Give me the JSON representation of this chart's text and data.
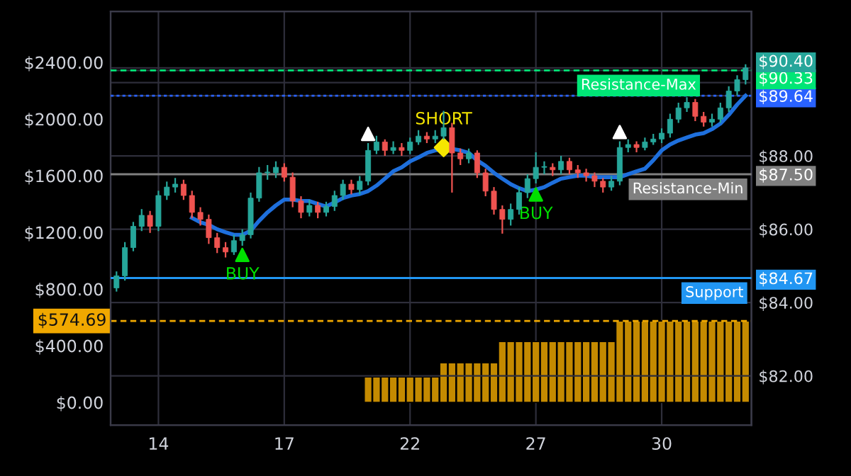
{
  "chart_data": {
    "type": "candlestick",
    "categories": [
      null,
      null,
      null,
      null,
      null,
      "14",
      null,
      null,
      null,
      null,
      null,
      null,
      null,
      null,
      null,
      null,
      null,
      null,
      null,
      null,
      "17",
      null,
      null,
      null,
      null,
      null,
      null,
      null,
      null,
      null,
      null,
      null,
      null,
      null,
      null,
      "22",
      null,
      null,
      null,
      null,
      null,
      null,
      null,
      null,
      null,
      null,
      null,
      null,
      null,
      null,
      "27",
      null,
      null,
      null,
      null,
      null,
      null,
      null,
      null,
      null,
      null,
      null,
      null,
      null,
      null,
      "30",
      null,
      null,
      null,
      null,
      null,
      null,
      null,
      null,
      null,
      null
    ],
    "series": [
      {
        "type": "bar",
        "axis": "y",
        "color": "#c48a00",
        "values": [
          null,
          null,
          null,
          null,
          null,
          null,
          null,
          null,
          null,
          null,
          null,
          null,
          null,
          null,
          null,
          null,
          null,
          null,
          null,
          null,
          null,
          null,
          null,
          null,
          null,
          null,
          null,
          null,
          null,
          null,
          180,
          180,
          180,
          180,
          180,
          180,
          180,
          180,
          180,
          280,
          280,
          280,
          280,
          280,
          280,
          280,
          430,
          430,
          430,
          430,
          430,
          430,
          430,
          430,
          430,
          430,
          430,
          430,
          430,
          430,
          574.69,
          574.69,
          574.69,
          574.69,
          574.69,
          574.69,
          574.69,
          574.69,
          574.69,
          574.69,
          574.69,
          574.69,
          574.69,
          574.69,
          574.69,
          574.69
        ]
      },
      {
        "axis": "y2",
        "ohlc": [
          [
            84.4,
            84.85,
            84.3,
            84.73
          ],
          [
            84.73,
            85.65,
            84.6,
            85.5
          ],
          [
            85.5,
            86.2,
            85.4,
            86.08
          ],
          [
            86.08,
            86.55,
            85.95,
            86.38
          ],
          [
            86.38,
            86.5,
            85.9,
            86.08
          ],
          [
            86.08,
            87.05,
            85.95,
            86.92
          ],
          [
            86.92,
            87.3,
            86.8,
            87.15
          ],
          [
            87.15,
            87.4,
            87.0,
            87.23
          ],
          [
            87.23,
            87.35,
            86.8,
            86.92
          ],
          [
            86.92,
            87.05,
            86.3,
            86.46
          ],
          [
            86.46,
            86.6,
            86.1,
            86.27
          ],
          [
            86.27,
            86.4,
            85.6,
            85.77
          ],
          [
            85.77,
            85.9,
            85.35,
            85.5
          ],
          [
            85.5,
            85.65,
            85.23,
            85.38
          ],
          [
            85.38,
            85.85,
            85.3,
            85.69
          ],
          [
            85.69,
            86.0,
            85.55,
            85.85
          ],
          [
            85.85,
            87.0,
            85.75,
            86.85
          ],
          [
            86.85,
            87.7,
            86.75,
            87.54
          ],
          [
            87.54,
            87.75,
            87.35,
            87.54
          ],
          [
            87.54,
            87.85,
            87.4,
            87.69
          ],
          [
            87.69,
            87.8,
            87.3,
            87.42
          ],
          [
            87.42,
            87.55,
            86.6,
            86.77
          ],
          [
            86.77,
            86.9,
            86.3,
            86.46
          ],
          [
            86.46,
            86.8,
            86.35,
            86.65
          ],
          [
            86.65,
            86.75,
            86.3,
            86.46
          ],
          [
            86.46,
            86.75,
            86.35,
            86.62
          ],
          [
            86.62,
            87.05,
            86.5,
            86.92
          ],
          [
            86.92,
            87.35,
            86.8,
            87.23
          ],
          [
            87.23,
            87.35,
            86.95,
            87.08
          ],
          [
            87.08,
            87.45,
            86.95,
            87.31
          ],
          [
            87.31,
            88.35,
            87.2,
            88.15
          ],
          [
            88.15,
            88.55,
            88.05,
            88.38
          ],
          [
            88.38,
            88.45,
            88.0,
            88.15
          ],
          [
            88.15,
            88.4,
            88.05,
            88.23
          ],
          [
            88.23,
            88.35,
            88.0,
            88.15
          ],
          [
            88.15,
            88.5,
            88.05,
            88.38
          ],
          [
            88.38,
            88.7,
            88.3,
            88.54
          ],
          [
            88.54,
            88.65,
            88.35,
            88.46
          ],
          [
            88.46,
            88.7,
            88.35,
            88.54
          ],
          [
            88.54,
            89.23,
            88.45,
            88.77
          ],
          [
            88.77,
            88.9,
            87.0,
            88.08
          ],
          [
            88.08,
            88.2,
            87.75,
            87.92
          ],
          [
            87.92,
            88.2,
            87.8,
            88.08
          ],
          [
            88.08,
            88.15,
            87.4,
            87.54
          ],
          [
            87.54,
            87.65,
            86.9,
            87.04
          ],
          [
            87.04,
            87.15,
            86.4,
            86.54
          ],
          [
            86.54,
            86.65,
            85.88,
            86.27
          ],
          [
            86.27,
            86.7,
            86.1,
            86.54
          ],
          [
            86.54,
            87.15,
            86.4,
            87.0
          ],
          [
            87.0,
            87.5,
            86.85,
            87.38
          ],
          [
            87.38,
            88.1,
            87.25,
            87.69
          ],
          [
            87.69,
            87.85,
            87.5,
            87.69
          ],
          [
            87.69,
            87.8,
            87.45,
            87.62
          ],
          [
            87.62,
            88.0,
            87.5,
            87.85
          ],
          [
            87.85,
            87.95,
            87.5,
            87.62
          ],
          [
            87.62,
            87.75,
            87.4,
            87.54
          ],
          [
            87.54,
            87.65,
            87.3,
            87.46
          ],
          [
            87.46,
            87.55,
            87.15,
            87.31
          ],
          [
            87.31,
            87.4,
            87.0,
            87.15
          ],
          [
            87.15,
            87.45,
            87.05,
            87.31
          ],
          [
            87.31,
            88.4,
            87.2,
            88.23
          ],
          [
            88.23,
            88.45,
            88.1,
            88.31
          ],
          [
            88.31,
            88.4,
            88.1,
            88.23
          ],
          [
            88.23,
            88.5,
            88.15,
            88.38
          ],
          [
            88.38,
            88.6,
            88.3,
            88.46
          ],
          [
            88.46,
            88.75,
            88.35,
            88.62
          ],
          [
            88.62,
            89.15,
            88.5,
            89.0
          ],
          [
            89.0,
            89.45,
            88.9,
            89.31
          ],
          [
            89.31,
            89.6,
            89.2,
            89.46
          ],
          [
            89.46,
            89.55,
            88.95,
            89.08
          ],
          [
            89.08,
            89.2,
            88.8,
            88.92
          ],
          [
            88.92,
            89.15,
            88.8,
            89.0
          ],
          [
            89.0,
            89.45,
            88.9,
            89.31
          ],
          [
            89.31,
            89.9,
            89.2,
            89.77
          ],
          [
            89.77,
            90.2,
            89.65,
            90.08
          ],
          [
            90.08,
            90.5,
            89.95,
            90.4
          ]
        ]
      },
      {
        "type": "line",
        "axis": "y2",
        "color": "#1e6fdc",
        "values": [
          null,
          null,
          null,
          null,
          null,
          null,
          null,
          null,
          null,
          86.31,
          86.19,
          86.12,
          86.0,
          85.92,
          85.85,
          85.85,
          85.96,
          86.23,
          86.46,
          86.65,
          86.81,
          86.81,
          86.77,
          86.77,
          86.69,
          86.62,
          86.73,
          86.85,
          86.92,
          86.96,
          87.04,
          87.19,
          87.38,
          87.58,
          87.69,
          87.85,
          87.96,
          88.08,
          88.15,
          88.19,
          88.19,
          88.15,
          88.08,
          87.88,
          87.73,
          87.54,
          87.38,
          87.23,
          87.12,
          87.04,
          87.08,
          87.15,
          87.27,
          87.38,
          87.42,
          87.46,
          87.46,
          87.42,
          87.42,
          87.42,
          87.42,
          87.5,
          87.58,
          87.65,
          87.88,
          88.15,
          88.31,
          88.42,
          88.5,
          88.58,
          88.62,
          88.73,
          88.88,
          89.12,
          89.4,
          89.64
        ]
      },
      {
        "type": "scatter",
        "axis": "y2",
        "name": "BUY",
        "color": "#00e000",
        "marker": "triangle",
        "values": [
          null,
          null,
          null,
          null,
          null,
          null,
          null,
          null,
          null,
          null,
          null,
          null,
          null,
          null,
          null,
          85.3,
          null,
          null,
          null,
          null,
          null,
          null,
          null,
          null,
          null,
          null,
          null,
          null,
          null,
          null,
          null,
          null,
          null,
          null,
          null,
          null,
          null,
          null,
          null,
          null,
          null,
          null,
          null,
          null,
          null,
          null,
          null,
          null,
          null,
          null,
          86.95,
          null,
          null,
          null,
          null,
          null,
          null,
          null,
          null,
          null,
          null,
          null,
          null,
          null,
          null,
          null,
          null,
          null,
          null,
          null,
          null,
          null,
          null,
          null,
          null,
          null
        ]
      },
      {
        "type": "scatter",
        "axis": "y2",
        "name": "SHORT",
        "color": "#f5e600",
        "marker": "diamond",
        "values": [
          null,
          null,
          null,
          null,
          null,
          null,
          null,
          null,
          null,
          null,
          null,
          null,
          null,
          null,
          null,
          null,
          null,
          null,
          null,
          null,
          null,
          null,
          null,
          null,
          null,
          null,
          null,
          null,
          null,
          null,
          null,
          null,
          null,
          null,
          null,
          null,
          null,
          null,
          null,
          88.23,
          null,
          null,
          null,
          null,
          null,
          null,
          null,
          null,
          null,
          null,
          null,
          null,
          null,
          null,
          null,
          null,
          null,
          null,
          null,
          null,
          null,
          null,
          null,
          null,
          null,
          null,
          null,
          null,
          null,
          null,
          null,
          null,
          null,
          null,
          null,
          null
        ]
      },
      {
        "type": "scatter",
        "axis": "y2",
        "color": "#ffffff",
        "marker": "triangle",
        "values": [
          null,
          null,
          null,
          null,
          null,
          null,
          null,
          null,
          null,
          null,
          null,
          null,
          null,
          null,
          null,
          null,
          null,
          null,
          null,
          null,
          null,
          null,
          null,
          null,
          null,
          null,
          null,
          null,
          null,
          null,
          88.6,
          null,
          null,
          null,
          null,
          null,
          null,
          null,
          null,
          null,
          null,
          null,
          null,
          null,
          null,
          null,
          null,
          null,
          null,
          null,
          null,
          null,
          null,
          null,
          null,
          null,
          null,
          null,
          null,
          null,
          88.65,
          null,
          null,
          null,
          null,
          null,
          null,
          null,
          null,
          null,
          null,
          null,
          null,
          null,
          null,
          null
        ]
      }
    ],
    "ylim": [
      -160,
      2760
    ],
    "yticks": [
      {
        "value": 0,
        "label": "$0.00"
      },
      {
        "value": 400,
        "label": "$400.00"
      },
      {
        "value": 800,
        "label": "$800.00"
      },
      {
        "value": 1200,
        "label": "$1200.00"
      },
      {
        "value": 1600,
        "label": "$1600.00"
      },
      {
        "value": 2000,
        "label": "$2000.00"
      },
      {
        "value": 2400,
        "label": "$2400.00"
      }
    ],
    "y2lim": [
      80.66,
      91.94
    ],
    "y2ticks": [
      {
        "value": 82,
        "label": "$82.00"
      },
      {
        "value": 84,
        "label": "$84.00"
      },
      {
        "value": 84.67,
        "label": "$84.67"
      },
      {
        "value": 86,
        "label": "$86.00"
      },
      {
        "value": 87.5,
        "label": "$87.50"
      },
      {
        "value": 88,
        "label": "$88.00"
      },
      {
        "value": 89.64,
        "label": "$89.64"
      },
      {
        "value": 90,
        "label": null
      },
      {
        "value": 90.33,
        "label": "$90.33"
      },
      {
        "value": 90.4,
        "label": "$90.40"
      }
    ],
    "ref_lines": [
      {
        "axis": "y2",
        "value": 90.33,
        "label": "Resistance-Max",
        "color": "#00e676",
        "line_style": "dashed"
      },
      {
        "axis": "y2",
        "value": 89.64,
        "label": null,
        "color": "#2962ff",
        "line_style": "dotted"
      },
      {
        "axis": "y2",
        "value": 87.5,
        "label": "Resistance-Min",
        "color": "#808080",
        "line_style": "solid"
      },
      {
        "axis": "y2",
        "value": 84.67,
        "label": "Support",
        "color": "#2196f3",
        "line_style": "solid"
      },
      {
        "axis": "y",
        "value": 574.69,
        "label": "$574.69",
        "color": "#f0a800",
        "line_style": "dashed"
      }
    ],
    "grid": true
  }
}
